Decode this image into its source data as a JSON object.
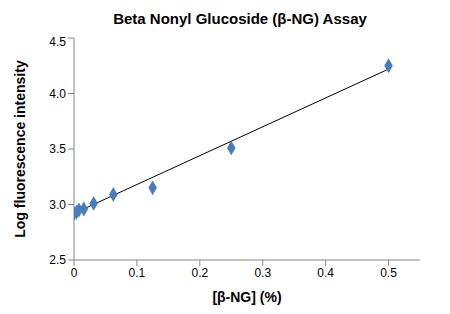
{
  "chart_data": {
    "type": "scatter",
    "title": "Beta Nonyl Glucoside (β-NG) Assay",
    "x_label": "[β-NG] (%)",
    "y_label": "Log fluorescence intensity",
    "x": [
      0,
      0.0039,
      0.0078,
      0.0156,
      0.03125,
      0.0625,
      0.125,
      0.25,
      0.5
    ],
    "values": [
      2.92,
      2.93,
      2.95,
      2.96,
      3.01,
      3.09,
      3.15,
      3.51,
      4.25
    ],
    "color": "#4a7ebb",
    "marker": "diamond",
    "trendline": {
      "x": [
        0,
        0.5
      ],
      "values": [
        2.92,
        4.22
      ],
      "color": "#000000"
    },
    "xlim": [
      0,
      0.55
    ],
    "xticks": [
      0,
      0.1,
      0.2,
      0.3,
      0.4,
      0.5
    ],
    "ylim": [
      2.5,
      4.5
    ],
    "yticks": [
      2.5,
      {
        "value": 3,
        "label": "3.0"
      },
      3.5,
      {
        "value": 4,
        "label": "4.0"
      },
      4.5
    ],
    "grid": false
  }
}
